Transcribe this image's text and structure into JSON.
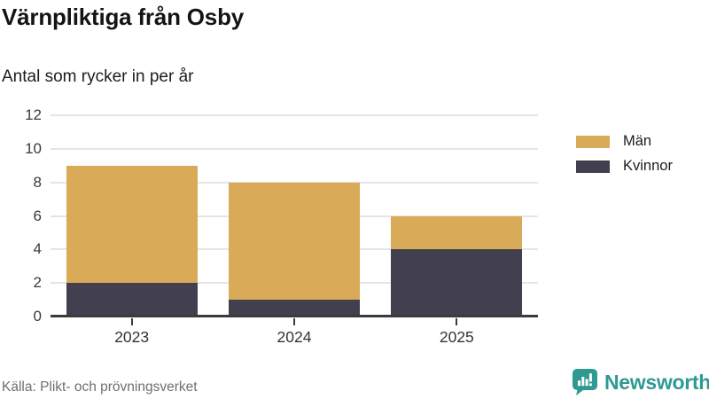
{
  "header": {
    "title": "Värnpliktiga från Osby",
    "subtitle": "Antal som rycker in per år"
  },
  "chart_data": {
    "type": "bar",
    "stacked": true,
    "title": "Värnpliktiga från Osby",
    "subtitle": "Antal som rycker in per år",
    "categories": [
      "2023",
      "2024",
      "2025"
    ],
    "series": [
      {
        "name": "Män",
        "color": "#D9AA57",
        "values": [
          7,
          7,
          2
        ]
      },
      {
        "name": "Kvinnor",
        "color": "#423F4E",
        "values": [
          2,
          1,
          4
        ]
      }
    ],
    "stack_order": [
      "Kvinnor",
      "Män"
    ],
    "totals": [
      9,
      8,
      6
    ],
    "yticks": [
      0,
      2,
      4,
      6,
      8,
      10,
      12
    ],
    "ylim": [
      0,
      12
    ],
    "xlabel": "",
    "ylabel": "",
    "grid": "horizontal",
    "legend_position": "right"
  },
  "legend": {
    "items": [
      {
        "label": "Män",
        "color": "#D9AA57"
      },
      {
        "label": "Kvinnor",
        "color": "#423F4E"
      }
    ]
  },
  "footer": {
    "source": "Källa: Plikt- och prövningsverket",
    "brand": "Newsworthy"
  },
  "colors": {
    "bar_men": "#D9AA57",
    "bar_women": "#423F4E",
    "brand_teal": "#2F9A92",
    "gridline": "#E5E5E5",
    "axis_line": "#3B3B3B",
    "source_text": "#6F6F6F"
  }
}
